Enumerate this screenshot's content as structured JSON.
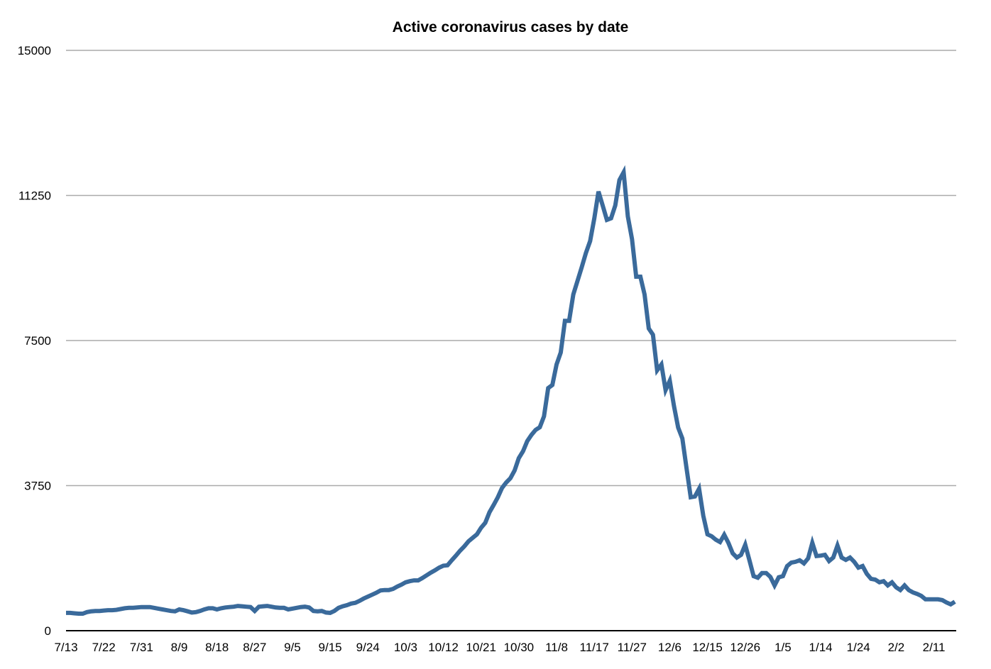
{
  "chart_data": {
    "type": "line",
    "title": "Active coronavirus cases by date",
    "xlabel": "",
    "ylabel": "",
    "ylim": [
      0,
      15000
    ],
    "yticks": [
      "0",
      "3750",
      "7500",
      "11250",
      "15000"
    ],
    "ytick_values": [
      0,
      3750,
      7500,
      11250,
      15000
    ],
    "xtick_labels": [
      "7/13",
      "7/22",
      "7/31",
      "8/9",
      "8/18",
      "8/27",
      "9/5",
      "9/15",
      "9/24",
      "10/3",
      "10/12",
      "10/21",
      "10/30",
      "11/8",
      "11/17",
      "11/27",
      "12/6",
      "12/15",
      "12/26",
      "1/5",
      "1/14",
      "1/24",
      "2/2",
      "2/11"
    ],
    "xtick_every": 9,
    "grid": true,
    "legend": "none",
    "line_color": "#3a6a9b",
    "grid_color": "#aaaaaa",
    "values": [
      460,
      460,
      450,
      440,
      440,
      480,
      500,
      510,
      510,
      520,
      530,
      530,
      540,
      560,
      580,
      590,
      590,
      600,
      610,
      610,
      610,
      590,
      570,
      550,
      530,
      510,
      500,
      550,
      530,
      500,
      470,
      480,
      510,
      550,
      580,
      580,
      550,
      580,
      600,
      610,
      620,
      640,
      630,
      620,
      610,
      510,
      620,
      630,
      640,
      620,
      600,
      590,
      590,
      550,
      570,
      590,
      610,
      620,
      600,
      510,
      500,
      510,
      470,
      460,
      510,
      590,
      630,
      660,
      700,
      720,
      770,
      830,
      880,
      930,
      980,
      1040,
      1050,
      1050,
      1080,
      1140,
      1190,
      1250,
      1280,
      1300,
      1300,
      1360,
      1430,
      1500,
      1560,
      1630,
      1680,
      1690,
      1820,
      1940,
      2070,
      2180,
      2310,
      2400,
      2490,
      2660,
      2790,
      3060,
      3250,
      3450,
      3690,
      3830,
      3940,
      4140,
      4460,
      4640,
      4900,
      5060,
      5190,
      5260,
      5540,
      6270,
      6350,
      6880,
      7190,
      8010,
      8010,
      8690,
      9040,
      9390,
      9760,
      10070,
      10660,
      11350,
      10990,
      10620,
      10660,
      10990,
      11650,
      11850,
      10710,
      10120,
      9150,
      9150,
      8690,
      7810,
      7650,
      6730,
      6880,
      6220,
      6460,
      5810,
      5250,
      4970,
      4200,
      3450,
      3470,
      3670,
      2970,
      2490,
      2440,
      2350,
      2290,
      2480,
      2270,
      2000,
      1890,
      1960,
      2220,
      1820,
      1410,
      1370,
      1490,
      1490,
      1390,
      1170,
      1380,
      1410,
      1670,
      1760,
      1780,
      1820,
      1740,
      1870,
      2270,
      1930,
      1940,
      1960,
      1800,
      1890,
      2200,
      1890,
      1830,
      1890,
      1780,
      1630,
      1670,
      1470,
      1340,
      1320,
      1250,
      1280,
      1170,
      1250,
      1120,
      1050,
      1170,
      1050,
      990,
      950,
      900,
      810,
      810,
      810,
      810,
      790,
      730,
      680,
      750
    ]
  }
}
